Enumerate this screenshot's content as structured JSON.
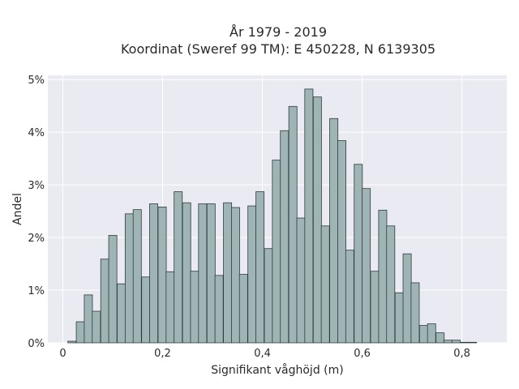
{
  "chart_data": {
    "type": "bar",
    "title_line1": "År 1979 - 2019",
    "title_line2": "Koordinat (Sweref 99 TM): E 450228, N 6139305",
    "xlabel": "Signifikant våghöjd (m)",
    "ylabel": "Andel",
    "xlim": [
      -0.03,
      0.89
    ],
    "ylim": [
      0,
      5.08
    ],
    "x_ticks": [
      {
        "value": 0,
        "label": "0"
      },
      {
        "value": 0.2,
        "label": "0,2"
      },
      {
        "value": 0.4,
        "label": "0,4"
      },
      {
        "value": 0.6,
        "label": "0,6"
      },
      {
        "value": 0.8,
        "label": "0,8"
      }
    ],
    "y_ticks": [
      {
        "value": 0,
        "label": "0%"
      },
      {
        "value": 1,
        "label": "1%"
      },
      {
        "value": 2,
        "label": "2%"
      },
      {
        "value": 3,
        "label": "3%"
      },
      {
        "value": 4,
        "label": "4%"
      },
      {
        "value": 5,
        "label": "5%"
      }
    ],
    "bin_width": 0.0164,
    "bins_start": [
      0.01,
      0.027,
      0.043,
      0.059,
      0.076,
      0.092,
      0.109,
      0.125,
      0.141,
      0.158,
      0.174,
      0.191,
      0.207,
      0.223,
      0.24,
      0.256,
      0.272,
      0.289,
      0.305,
      0.322,
      0.338,
      0.354,
      0.371,
      0.387,
      0.404,
      0.42,
      0.436,
      0.453,
      0.469,
      0.485,
      0.502,
      0.518,
      0.535,
      0.551,
      0.567,
      0.584,
      0.6,
      0.617,
      0.633,
      0.649,
      0.666,
      0.682,
      0.698,
      0.715,
      0.731,
      0.748,
      0.764,
      0.78,
      0.797,
      0.813,
      0.83
    ],
    "values": [
      0.03,
      0.4,
      0.91,
      0.6,
      1.59,
      2.04,
      1.12,
      2.45,
      2.53,
      1.25,
      2.64,
      2.58,
      1.35,
      2.87,
      2.66,
      1.36,
      2.64,
      2.64,
      1.28,
      2.66,
      2.57,
      1.3,
      2.6,
      2.87,
      1.79,
      3.47,
      4.03,
      4.49,
      2.37,
      4.82,
      4.67,
      2.22,
      4.26,
      3.84,
      1.76,
      3.39,
      2.93,
      1.36,
      2.52,
      2.22,
      0.95,
      1.69,
      1.14,
      0.33,
      0.36,
      0.19,
      0.05,
      0.05,
      0.01,
      0.01,
      0.0
    ],
    "grid": true,
    "colors": {
      "bar_fill": "#9fb5b5",
      "bar_edge": "#2f3b3b",
      "plot_bg": "#eaeaf2",
      "grid": "#ffffff"
    }
  }
}
